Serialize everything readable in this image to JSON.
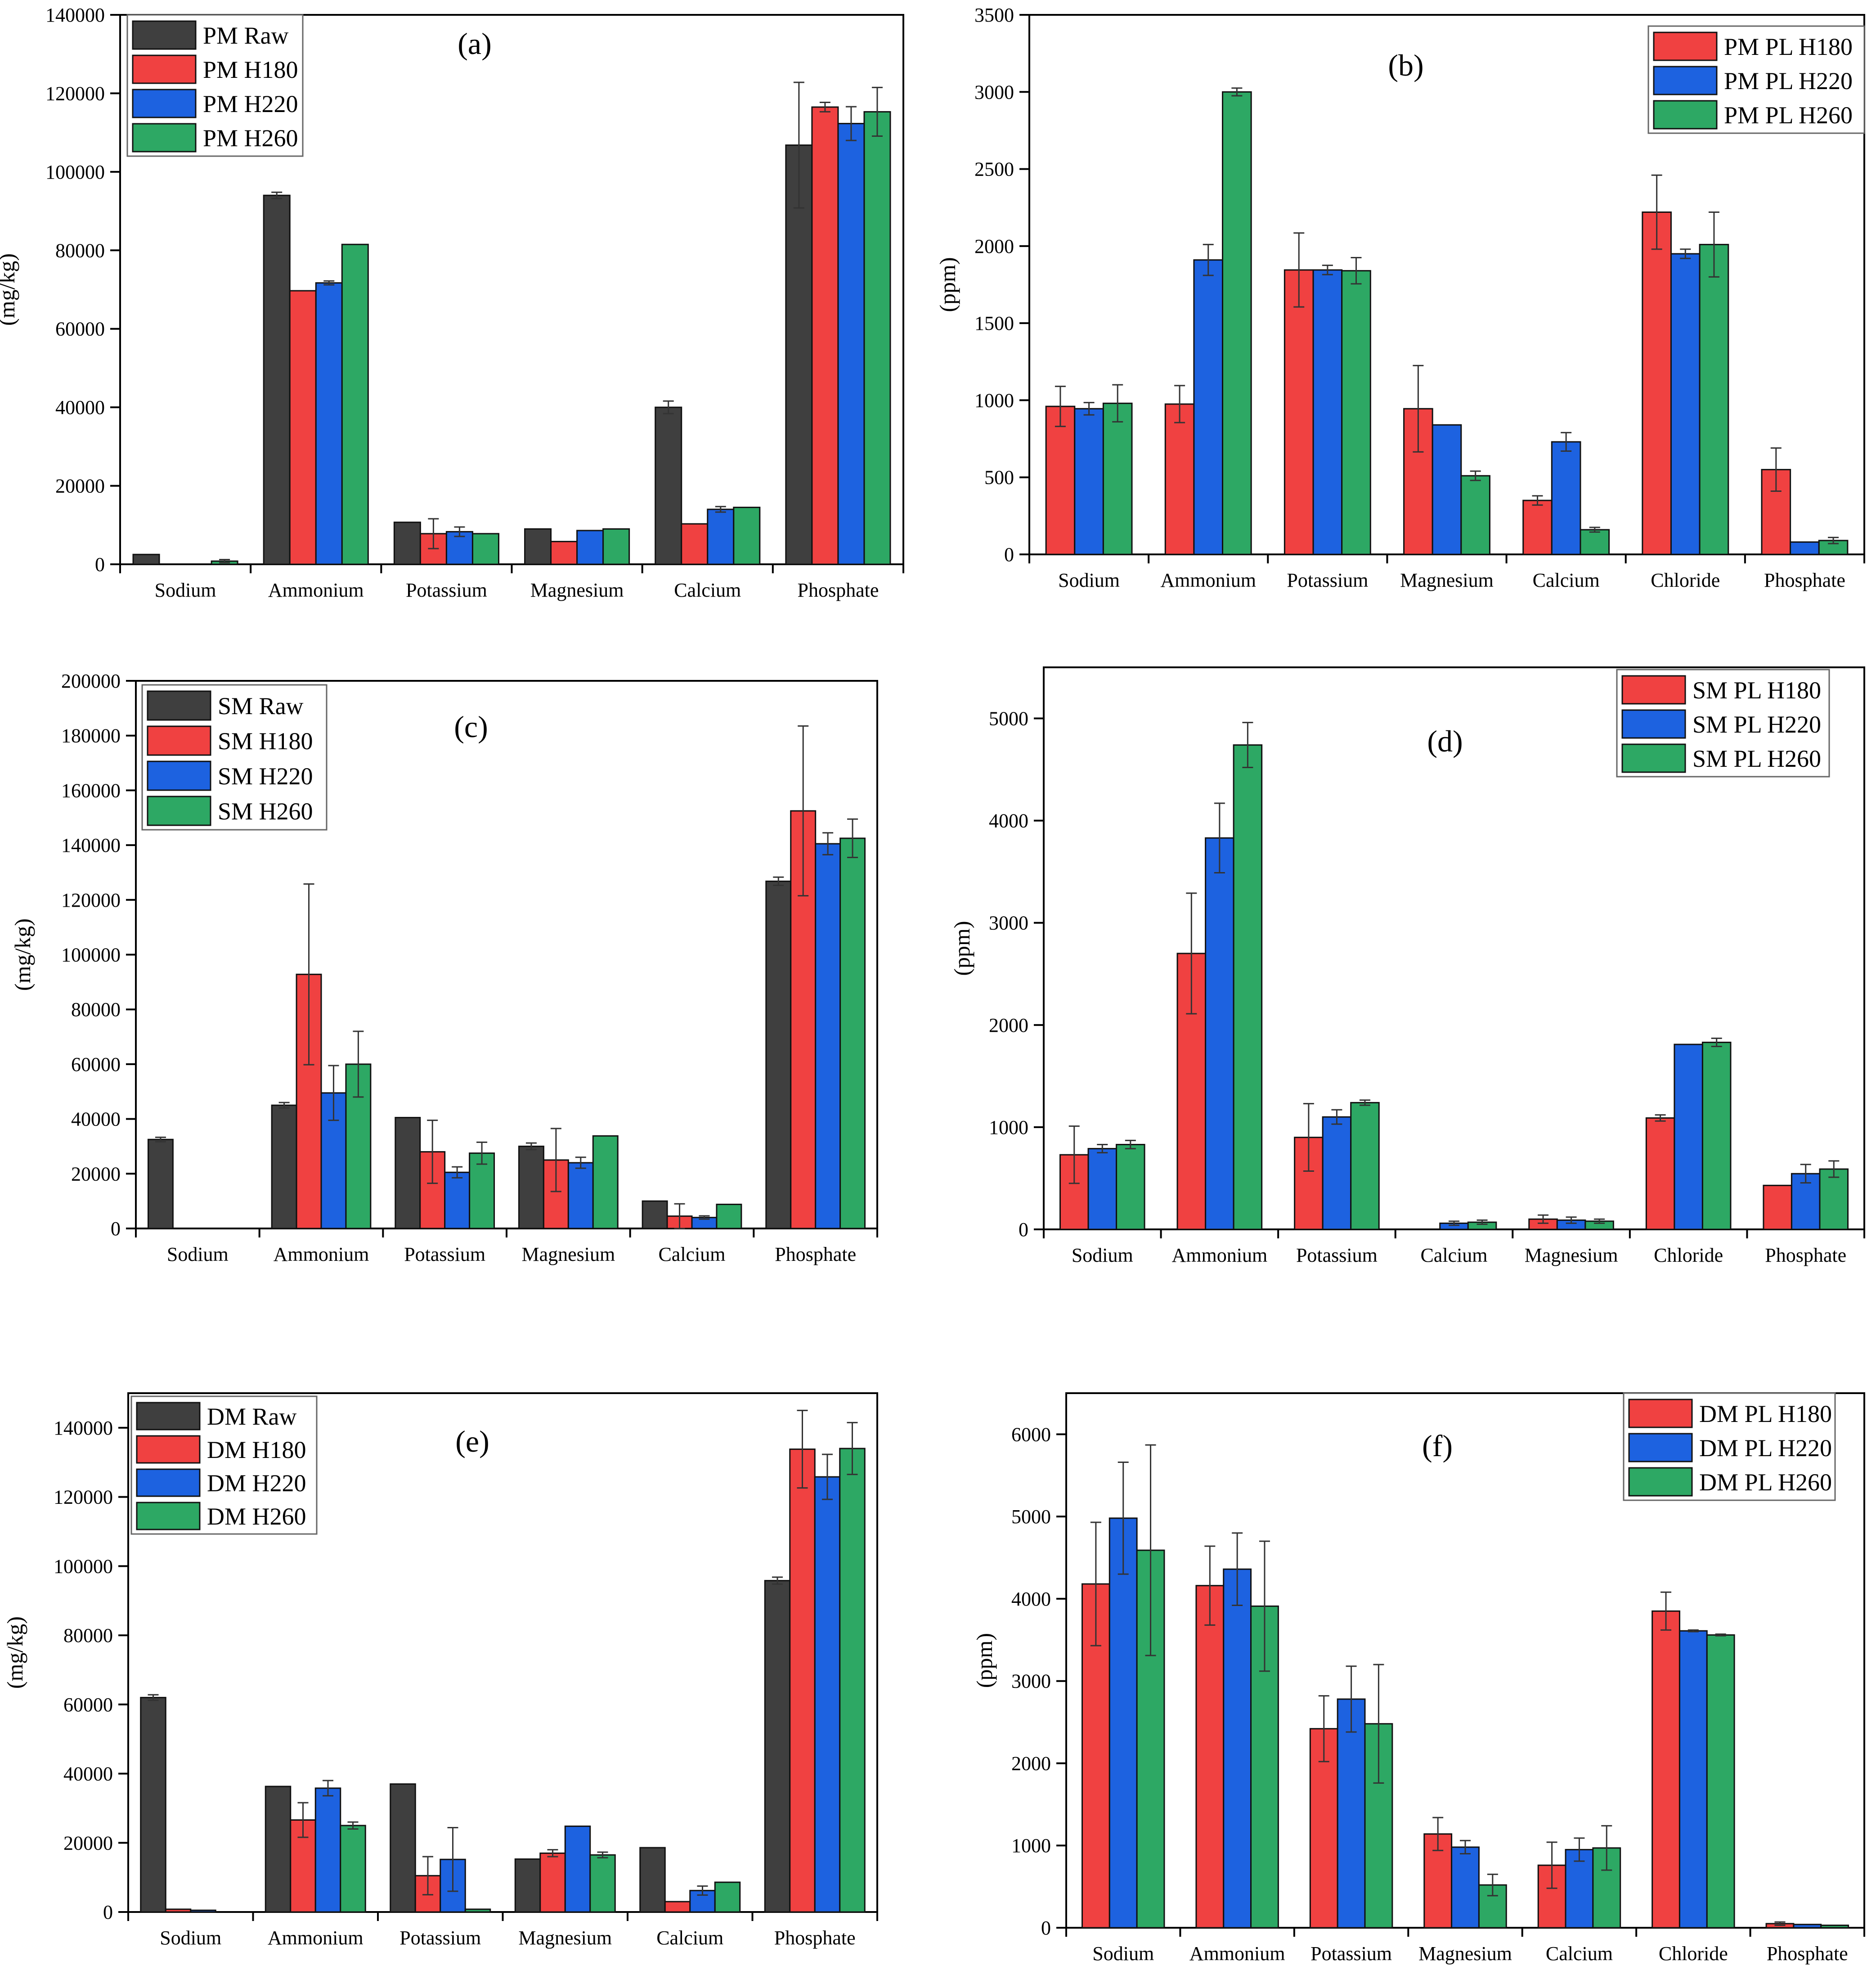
{
  "colors": {
    "raw": "#3f3f3f",
    "h180": "#f04141",
    "h220": "#1d62e0",
    "h260": "#2da864",
    "axis": "#000000",
    "errbar": "#222222"
  },
  "chart_data": [
    {
      "type": "bar",
      "panel_label": "(a)",
      "ylabel": "(mg/kg)",
      "ylim": [
        0,
        140000
      ],
      "yticks": [
        0,
        20000,
        40000,
        60000,
        80000,
        100000,
        120000,
        140000
      ],
      "ytick_labels": [
        "0",
        "20000",
        "40000",
        "60000",
        "80000",
        "100000",
        "120000",
        "140000"
      ],
      "categories": [
        "Sodium",
        "Ammonium",
        "Potassium",
        "Magnesium",
        "Calcium",
        "Phosphate"
      ],
      "legend_position": "top-left",
      "series": [
        {
          "name": "PM Raw",
          "color": "#3f3f3f",
          "values": [
            2500,
            94000,
            10700,
            9000,
            40000,
            106800
          ],
          "errors": [
            0,
            800,
            0,
            0,
            1600,
            16000
          ]
        },
        {
          "name": "PM H180",
          "color": "#f04141",
          "values": [
            0,
            69700,
            7800,
            5800,
            10300,
            116500
          ],
          "errors": [
            0,
            0,
            3800,
            0,
            0,
            1200
          ]
        },
        {
          "name": "PM H220",
          "color": "#1d62e0",
          "values": [
            0,
            71700,
            8300,
            8600,
            14000,
            112300
          ],
          "errors": [
            0,
            500,
            1200,
            0,
            700,
            4300
          ]
        },
        {
          "name": "PM H260",
          "color": "#2da864",
          "values": [
            800,
            81500,
            7800,
            9000,
            14500,
            115300
          ],
          "errors": [
            400,
            0,
            0,
            0,
            0,
            6200
          ]
        }
      ]
    },
    {
      "type": "bar",
      "panel_label": "(b)",
      "ylabel": "(ppm)",
      "ylim": [
        0,
        3500
      ],
      "yticks": [
        0,
        500,
        1000,
        1500,
        2000,
        2500,
        3000,
        3500
      ],
      "ytick_labels": [
        "0",
        "500",
        "1000",
        "1500",
        "2000",
        "2500",
        "3000",
        "3500"
      ],
      "categories": [
        "Sodium",
        "Ammonium",
        "Potassium",
        "Magnesium",
        "Calcium",
        "Chloride",
        "Phosphate"
      ],
      "legend_position": "top-right",
      "series": [
        {
          "name": "PM PL H180",
          "color": "#f04141",
          "values": [
            960,
            975,
            1845,
            945,
            350,
            2220,
            550
          ],
          "errors": [
            130,
            120,
            240,
            280,
            30,
            240,
            140
          ]
        },
        {
          "name": "PM PL H220",
          "color": "#1d62e0",
          "values": [
            945,
            1910,
            1845,
            840,
            730,
            1950,
            80
          ],
          "errors": [
            40,
            100,
            30,
            0,
            60,
            30,
            0
          ]
        },
        {
          "name": "PM PL H260",
          "color": "#2da864",
          "values": [
            980,
            3000,
            1840,
            510,
            160,
            2010,
            90
          ],
          "errors": [
            120,
            25,
            85,
            30,
            15,
            210,
            20
          ]
        }
      ]
    },
    {
      "type": "bar",
      "panel_label": "(c)",
      "ylabel": "(mg/kg)",
      "ylim": [
        0,
        200000
      ],
      "yticks": [
        0,
        20000,
        40000,
        60000,
        80000,
        100000,
        120000,
        140000,
        160000,
        180000,
        200000
      ],
      "ytick_labels": [
        "0",
        "20000",
        "40000",
        "60000",
        "80000",
        "100000",
        "120000",
        "140000",
        "160000",
        "180000",
        "200000"
      ],
      "categories": [
        "Sodium",
        "Ammonium",
        "Potassium",
        "Magnesium",
        "Calcium",
        "Phosphate"
      ],
      "legend_position": "top-left",
      "series": [
        {
          "name": "SM Raw",
          "color": "#3f3f3f",
          "values": [
            32500,
            45000,
            40500,
            30000,
            10000,
            126800
          ],
          "errors": [
            800,
            1000,
            0,
            1200,
            0,
            1500
          ]
        },
        {
          "name": "SM H180",
          "color": "#f04141",
          "values": [
            0,
            92800,
            28000,
            25000,
            4500,
            152500
          ],
          "errors": [
            0,
            33000,
            11500,
            11500,
            4500,
            31000
          ]
        },
        {
          "name": "SM H220",
          "color": "#1d62e0",
          "values": [
            0,
            49500,
            20500,
            24000,
            4000,
            140500
          ],
          "errors": [
            0,
            10000,
            2000,
            2000,
            600,
            4000
          ]
        },
        {
          "name": "SM H260",
          "color": "#2da864",
          "values": [
            0,
            60000,
            27500,
            33800,
            8800,
            142500
          ],
          "errors": [
            0,
            12000,
            4000,
            0,
            0,
            7000
          ]
        }
      ]
    },
    {
      "type": "bar",
      "panel_label": "(d)",
      "ylabel": "(ppm)",
      "ylim": [
        0,
        5500
      ],
      "yticks": [
        0,
        1000,
        2000,
        3000,
        4000,
        5000
      ],
      "ytick_labels": [
        "0",
        "1000",
        "2000",
        "3000",
        "4000",
        "5000"
      ],
      "categories": [
        "Sodium",
        "Ammonium",
        "Potassium",
        "Calcium",
        "Magnesium",
        "Chloride",
        "Phosphate"
      ],
      "legend_position": "top-right",
      "series": [
        {
          "name": "SM PL H180",
          "color": "#f04141",
          "values": [
            730,
            2700,
            900,
            0,
            100,
            1090,
            430
          ],
          "errors": [
            280,
            590,
            330,
            0,
            40,
            30,
            0
          ]
        },
        {
          "name": "SM PL H220",
          "color": "#1d62e0",
          "values": [
            790,
            3830,
            1100,
            60,
            90,
            1810,
            545
          ],
          "errors": [
            40,
            340,
            70,
            20,
            30,
            0,
            90
          ]
        },
        {
          "name": "SM PL H260",
          "color": "#2da864",
          "values": [
            830,
            4740,
            1240,
            70,
            80,
            1830,
            590
          ],
          "errors": [
            40,
            220,
            25,
            20,
            20,
            40,
            80
          ]
        }
      ]
    },
    {
      "type": "bar",
      "panel_label": "(e)",
      "ylabel": "(mg/kg)",
      "ylim": [
        0,
        150000
      ],
      "yticks": [
        0,
        20000,
        40000,
        60000,
        80000,
        100000,
        120000,
        140000
      ],
      "ytick_labels": [
        "0",
        "20000",
        "40000",
        "60000",
        "80000",
        "100000",
        "120000",
        "140000"
      ],
      "categories": [
        "Sodium",
        "Ammonium",
        "Potassium",
        "Magnesium",
        "Calcium",
        "Phosphate"
      ],
      "legend_position": "top-left",
      "series": [
        {
          "name": "DM Raw",
          "color": "#3f3f3f",
          "values": [
            62000,
            36300,
            37000,
            15300,
            18600,
            95800
          ],
          "errors": [
            800,
            0,
            0,
            0,
            0,
            1000
          ]
        },
        {
          "name": "DM H180",
          "color": "#f04141",
          "values": [
            800,
            26600,
            10500,
            17000,
            3000,
            133800
          ],
          "errors": [
            0,
            5000,
            5500,
            1000,
            0,
            11200
          ]
        },
        {
          "name": "DM H220",
          "color": "#1d62e0",
          "values": [
            500,
            35800,
            15200,
            24800,
            6200,
            125800
          ],
          "errors": [
            0,
            2200,
            9200,
            0,
            1300,
            6500
          ]
        },
        {
          "name": "DM H260",
          "color": "#2da864",
          "values": [
            0,
            25000,
            800,
            16500,
            8600,
            134000
          ],
          "errors": [
            0,
            1000,
            0,
            800,
            0,
            7500
          ]
        }
      ]
    },
    {
      "type": "bar",
      "panel_label": "(f)",
      "ylabel": "(ppm)",
      "ylim": [
        0,
        6500
      ],
      "yticks": [
        0,
        1000,
        2000,
        3000,
        4000,
        5000,
        6000
      ],
      "ytick_labels": [
        "0",
        "1000",
        "2000",
        "3000",
        "4000",
        "5000",
        "6000"
      ],
      "categories": [
        "Sodium",
        "Ammonium",
        "Potassium",
        "Magnesium",
        "Calcium",
        "Chloride",
        "Phosphate"
      ],
      "legend_position": "top-right",
      "series": [
        {
          "name": "DM PL H180",
          "color": "#f04141",
          "values": [
            4180,
            4160,
            2420,
            1140,
            760,
            3850,
            50
          ],
          "errors": [
            750,
            480,
            400,
            200,
            280,
            230,
            20
          ]
        },
        {
          "name": "DM PL H220",
          "color": "#1d62e0",
          "values": [
            4980,
            4360,
            2780,
            980,
            950,
            3610,
            40
          ],
          "errors": [
            680,
            440,
            400,
            80,
            140,
            10,
            0
          ]
        },
        {
          "name": "DM PL H260",
          "color": "#2da864",
          "values": [
            4590,
            3910,
            2480,
            520,
            970,
            3560,
            30
          ],
          "errors": [
            1280,
            790,
            720,
            130,
            270,
            10,
            0
          ]
        }
      ]
    }
  ]
}
